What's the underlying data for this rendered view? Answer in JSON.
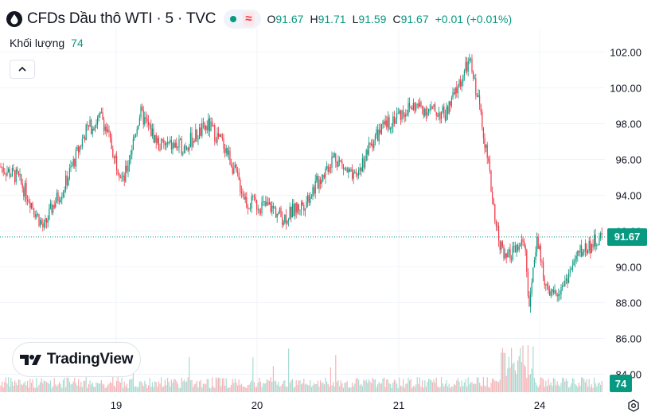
{
  "header": {
    "title": "CFDs Dầu thô WTI · 5 · TVC",
    "open_label": "O",
    "open": "91.67",
    "high_label": "H",
    "high": "91.71",
    "low_label": "L",
    "low": "91.59",
    "close_label": "C",
    "close": "91.67",
    "change": "+0.01 (+0.01%)"
  },
  "volume_legend": {
    "label": "Khối lượng",
    "value": "74"
  },
  "logo": {
    "text": "TradingView"
  },
  "price_tag": "91.67",
  "volume_tag": "74",
  "colors": {
    "up": "#089981",
    "down": "#f23645",
    "grid": "#f0f3fa",
    "text": "#131722",
    "up_vol": "#a7dcd3",
    "down_vol": "#f7b3b8"
  },
  "chart_data": {
    "type": "candlestick",
    "title": "CFDs Dầu thô WTI · 5 · TVC",
    "xlabel": "",
    "ylabel": "",
    "ylim": [
      83.0,
      103.3
    ],
    "y_ticks": [
      "102.00",
      "100.00",
      "98.00",
      "96.00",
      "94.00",
      "92.00",
      "90.00",
      "88.00",
      "86.00",
      "84.00"
    ],
    "x_ticks": [
      "19",
      "20",
      "21",
      "24"
    ],
    "grid": true,
    "last_price": 91.67,
    "price_path": [
      {
        "x": "18 start",
        "y": 95.6
      },
      {
        "x": "18 early",
        "y": 95.0
      },
      {
        "x": "18 dip",
        "y": 93.7
      },
      {
        "x": "18 low",
        "y": 92.1
      },
      {
        "x": "18 late",
        "y": 93.4
      },
      {
        "x": "18 close",
        "y": 94.4
      },
      {
        "x": "19 open",
        "y": 97.6
      },
      {
        "x": "19 early",
        "y": 98.4
      },
      {
        "x": "19 drop",
        "y": 94.7
      },
      {
        "x": "19 mid",
        "y": 98.6
      },
      {
        "x": "19 pm",
        "y": 96.8
      },
      {
        "x": "19 late",
        "y": 96.7
      },
      {
        "x": "19 close",
        "y": 97.9
      },
      {
        "x": "20 open",
        "y": 96.7
      },
      {
        "x": "20 drop",
        "y": 93.6
      },
      {
        "x": "20 mid",
        "y": 93.3
      },
      {
        "x": "20 low",
        "y": 92.7
      },
      {
        "x": "20 pm",
        "y": 93.6
      },
      {
        "x": "20 late",
        "y": 96.2
      },
      {
        "x": "20 close",
        "y": 94.8
      },
      {
        "x": "21 open",
        "y": 97.2
      },
      {
        "x": "21 mid",
        "y": 98.4
      },
      {
        "x": "21 pm",
        "y": 99.0
      },
      {
        "x": "21 late",
        "y": 98.5
      },
      {
        "x": "21 peak",
        "y": 101.5
      },
      {
        "x": "21 close",
        "y": 98.7
      },
      {
        "x": "gap",
        "y": 92.2
      },
      {
        "x": "gap low",
        "y": 90.3
      },
      {
        "x": "23 pm",
        "y": 91.4
      },
      {
        "x": "23 late",
        "y": 87.4
      },
      {
        "x": "23 bounce",
        "y": 91.6
      },
      {
        "x": "24 early",
        "y": 88.1
      },
      {
        "x": "24 pm",
        "y": 89.2
      },
      {
        "x": "24 late",
        "y": 90.8
      },
      {
        "x": "24 close",
        "y": 91.67
      }
    ]
  }
}
